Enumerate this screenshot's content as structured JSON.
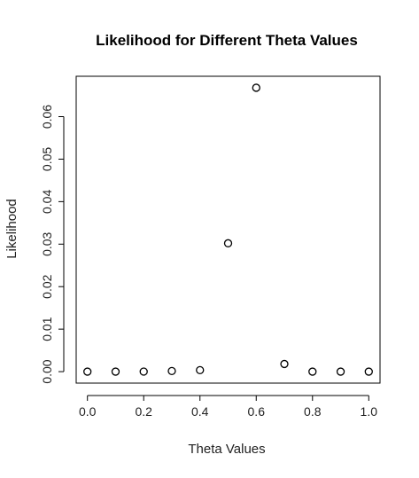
{
  "chart_data": {
    "type": "scatter",
    "title": "Likelihood for Different Theta Values",
    "xlabel": "Theta Values",
    "ylabel": "Likelihood",
    "x": [
      0.0,
      0.1,
      0.2,
      0.3,
      0.4,
      0.5,
      0.6,
      0.7,
      0.8,
      0.9,
      1.0
    ],
    "y": [
      0.0,
      0.0,
      1e-05,
      0.00014,
      0.00035,
      0.0302,
      0.0668,
      0.0018,
      0.0,
      0.0,
      0.0
    ],
    "xlim": [
      -0.04,
      1.04
    ],
    "ylim": [
      -0.0027,
      0.0695
    ],
    "xticks": [
      0.0,
      0.2,
      0.4,
      0.6,
      0.8,
      1.0
    ],
    "xtick_labels": [
      "0.0",
      "0.2",
      "0.4",
      "0.6",
      "0.8",
      "1.0"
    ],
    "yticks": [
      0.0,
      0.01,
      0.02,
      0.03,
      0.04,
      0.05,
      0.06
    ],
    "ytick_labels": [
      "0.00",
      "0.01",
      "0.02",
      "0.03",
      "0.04",
      "0.05",
      "0.06"
    ],
    "grid": false,
    "marker": "open-circle"
  }
}
